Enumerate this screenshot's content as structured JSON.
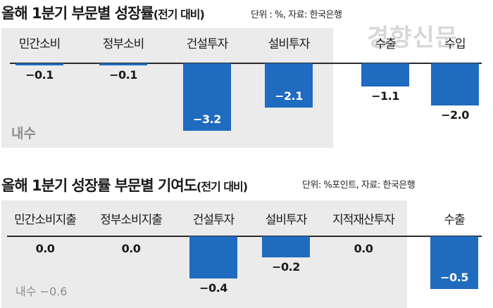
{
  "watermark": "경향신문",
  "charts": [
    {
      "title": "올해 1분기 부문별 성장률",
      "title_paren": "(전기 대비)",
      "unit_note": "단위 : %, 자료: 한국은행",
      "domestic_label": "내수",
      "domestic_value": ""
    },
    {
      "title": "올해 1분기 성장률 부문별 기여도",
      "title_paren": "(전기 대비)",
      "unit_note": "단위: %포인트, 자료: 한국은행",
      "domestic_label": "내수",
      "domestic_value": "−0.6"
    }
  ],
  "chart_data": [
    {
      "type": "bar",
      "title": "올해 1분기 부문별 성장률(전기 대비)",
      "unit": "%",
      "source": "한국은행",
      "categories": [
        "민간소비",
        "정부소비",
        "건설투자",
        "설비투자",
        "수출",
        "수입"
      ],
      "values": [
        -0.1,
        -0.1,
        -3.2,
        -2.1,
        -1.1,
        -2.0
      ],
      "value_labels": [
        "−0.1",
        "−0.1",
        "−3.2",
        "−2.1",
        "−1.1",
        "−2.0"
      ],
      "domestic_group": [
        "민간소비",
        "정부소비",
        "건설투자",
        "설비투자"
      ],
      "bar_color": "#1f6bbf",
      "panel_color": "#ebebeb"
    },
    {
      "type": "bar",
      "title": "올해 1분기 성장률 부문별 기여도(전기 대비)",
      "unit": "%포인트",
      "source": "한국은행",
      "categories": [
        "민간소비지출",
        "정부소비지출",
        "건설투자",
        "설비투자",
        "지적재산투자",
        "수출"
      ],
      "values": [
        0.0,
        0.0,
        -0.4,
        -0.2,
        0.0,
        -0.5
      ],
      "value_labels": [
        "0.0",
        "0.0",
        "−0.4",
        "−0.2",
        "0.0",
        "−0.5"
      ],
      "domestic_total": -0.6,
      "domestic_group": [
        "민간소비지출",
        "정부소비지출",
        "건설투자",
        "설비투자",
        "지적재산투자"
      ],
      "bar_color": "#1f6bbf",
      "panel_color": "#ebebeb"
    }
  ]
}
